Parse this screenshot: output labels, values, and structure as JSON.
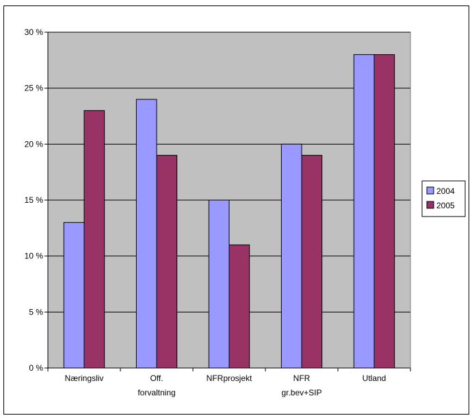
{
  "chart_data": {
    "type": "bar",
    "title": "",
    "xlabel": "",
    "ylabel": "",
    "categories": [
      [
        "Næringsliv"
      ],
      [
        "Off.",
        "forvaltning"
      ],
      [
        "NFRprosjekt"
      ],
      [
        "NFR",
        "gr.bev+SIP"
      ],
      [
        "Utland"
      ]
    ],
    "series": [
      {
        "name": "2004",
        "color": "#9999FF",
        "values": [
          13,
          24,
          15,
          20,
          28
        ]
      },
      {
        "name": "2005",
        "color": "#993366",
        "values": [
          23,
          19,
          11,
          19,
          28
        ]
      }
    ],
    "ylim": [
      0,
      30
    ],
    "yticks": [
      0,
      5,
      10,
      15,
      20,
      25,
      30
    ],
    "ytick_labels": [
      "0 %",
      "5 %",
      "10 %",
      "15 %",
      "20 %",
      "25 %",
      "30 %"
    ],
    "grid": true,
    "plot_background": "#C0C0C0",
    "legend_position": "right"
  }
}
